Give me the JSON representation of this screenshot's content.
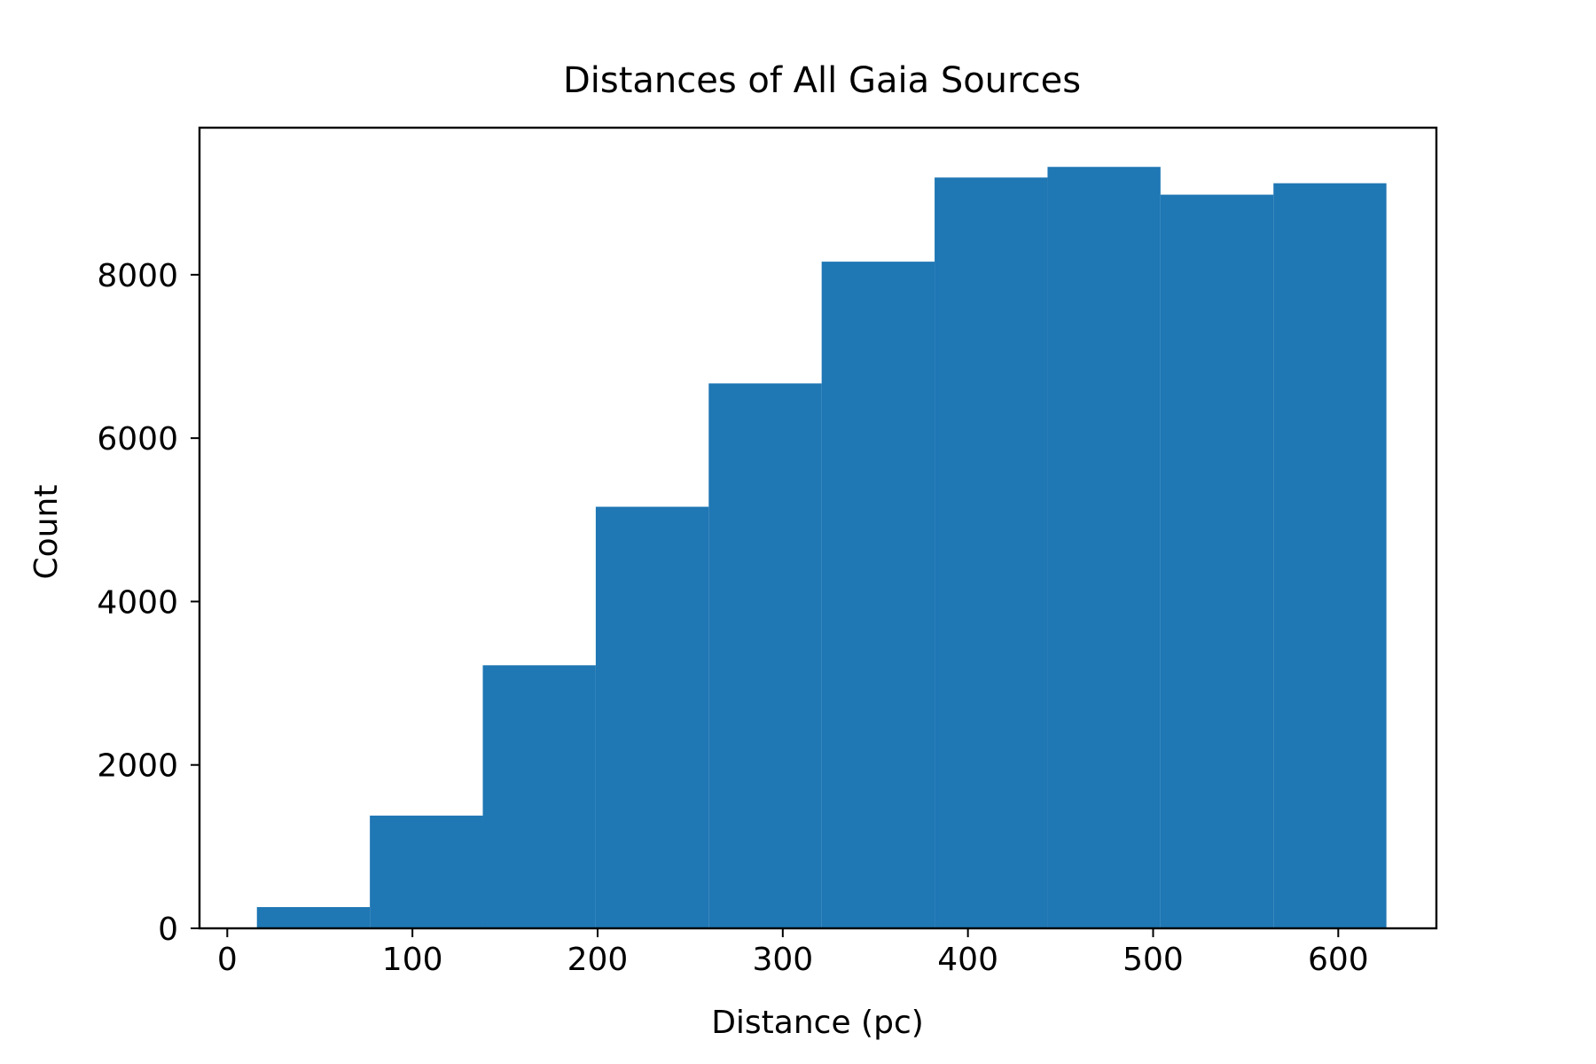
{
  "chart_data": {
    "type": "bar",
    "subtype": "histogram",
    "title": "Distances of All Gaia Sources",
    "xlabel": "Distance (pc)",
    "ylabel": "Count",
    "xlim": [
      -15,
      653
    ],
    "ylim": [
      0,
      9800
    ],
    "xticks": [
      0,
      100,
      200,
      300,
      400,
      500,
      600
    ],
    "yticks": [
      0,
      2000,
      4000,
      6000,
      8000
    ],
    "bin_edges": [
      16,
      77,
      138,
      199,
      260,
      321,
      382,
      443,
      504,
      565,
      626
    ],
    "values": [
      260,
      1380,
      3220,
      5160,
      6670,
      8160,
      9190,
      9320,
      8980,
      9120
    ],
    "bar_color": "#1f77b4",
    "grid": false,
    "legend": "none"
  }
}
